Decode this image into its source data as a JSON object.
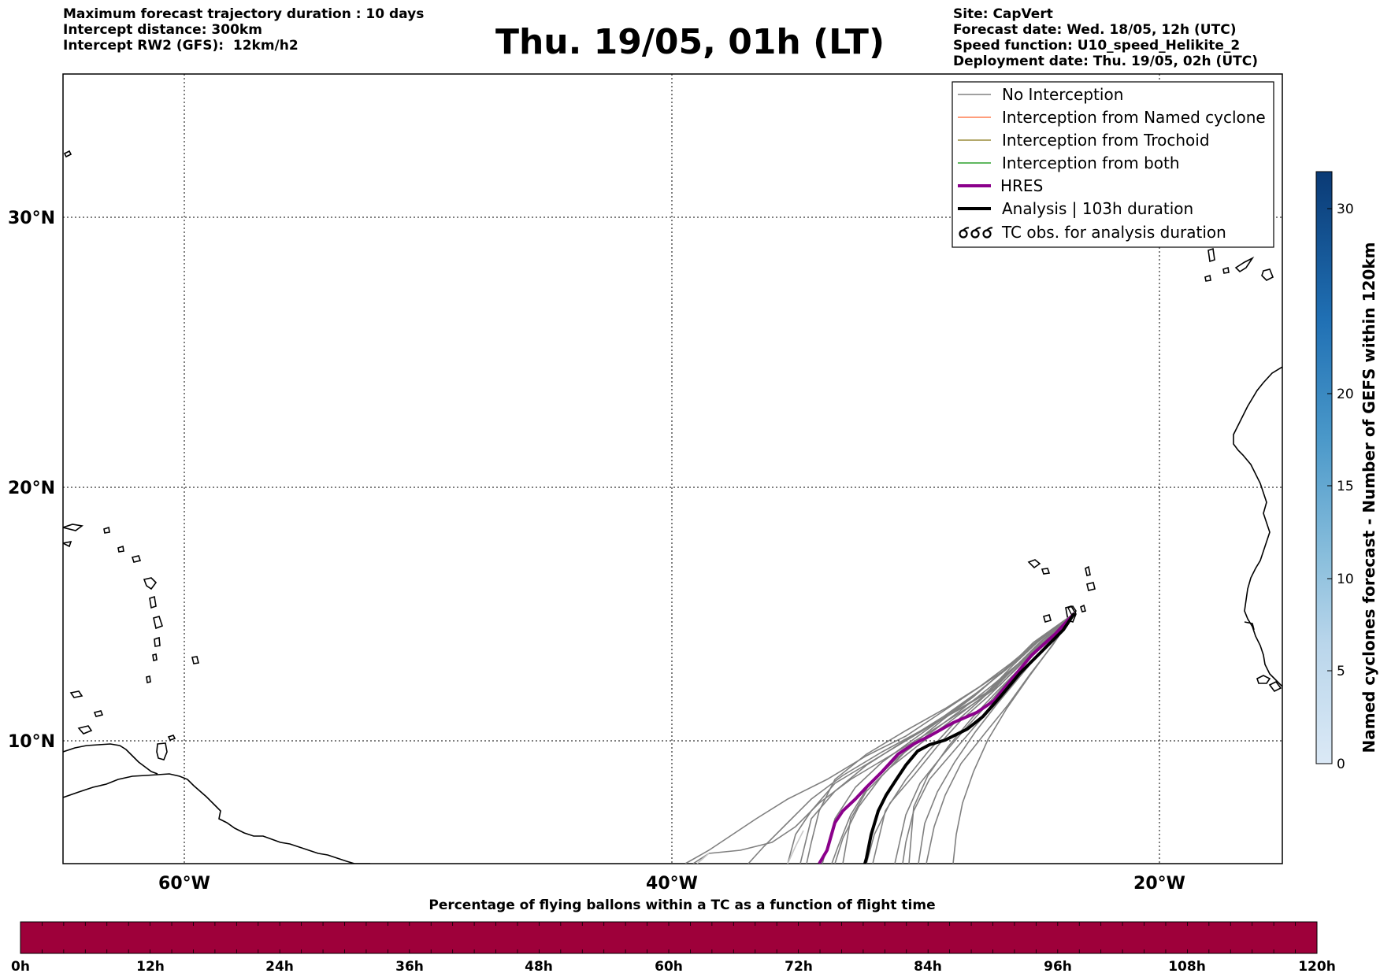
{
  "header": {
    "left_lines": [
      "Maximum forecast trajectory duration : 10 days",
      "Intercept distance: 300km",
      "Intercept RW2 (GFS):  12km/h2"
    ],
    "title": "Thu. 19/05, 01h (LT)",
    "right_lines": [
      "Site: CapVert",
      "Forecast date: Wed. 18/05, 12h (UTC)",
      "Speed function: U10_speed_Helikite_2",
      "Deployment date: Thu. 19/05, 02h (UTC)"
    ]
  },
  "map": {
    "lon_labels": [
      "60°W",
      "40°W",
      "20°W"
    ],
    "lat_labels": [
      "30°N",
      "20°N",
      "10°N"
    ],
    "grid": "dotted",
    "extent": {
      "lon": [
        -65,
        -15
      ],
      "lat": [
        5.4,
        34.8
      ]
    }
  },
  "legend": {
    "items": [
      {
        "label": "No Interception",
        "color": "#808080"
      },
      {
        "label": "Interception from Named cyclone",
        "color": "#ff7f50"
      },
      {
        "label": "Interception from Trochoid",
        "color": "#9a8c3a"
      },
      {
        "label": "Interception from both",
        "color": "#2ca02c"
      },
      {
        "label": "HRES",
        "color": "#8b008b"
      },
      {
        "label": "Analysis | 103h duration",
        "color": "#000000"
      },
      {
        "label": "TC obs. for analysis duration",
        "color": "#000000"
      }
    ]
  },
  "colorbar": {
    "label": "Named cyclones forecast - Number of GEFS within 120km",
    "ticks": [
      "0",
      "5",
      "10",
      "15",
      "20",
      "30"
    ],
    "range": [
      0,
      32
    ],
    "colors": [
      "#dbe9f6",
      "#0a3a75"
    ]
  },
  "bottom_bar": {
    "title": "Percentage of flying ballons within a TC as a function of flight time",
    "ticks": [
      "0h",
      "12h",
      "24h",
      "36h",
      "48h",
      "60h",
      "72h",
      "84h",
      "96h",
      "108h",
      "120h"
    ],
    "color": "#9e003a"
  }
}
